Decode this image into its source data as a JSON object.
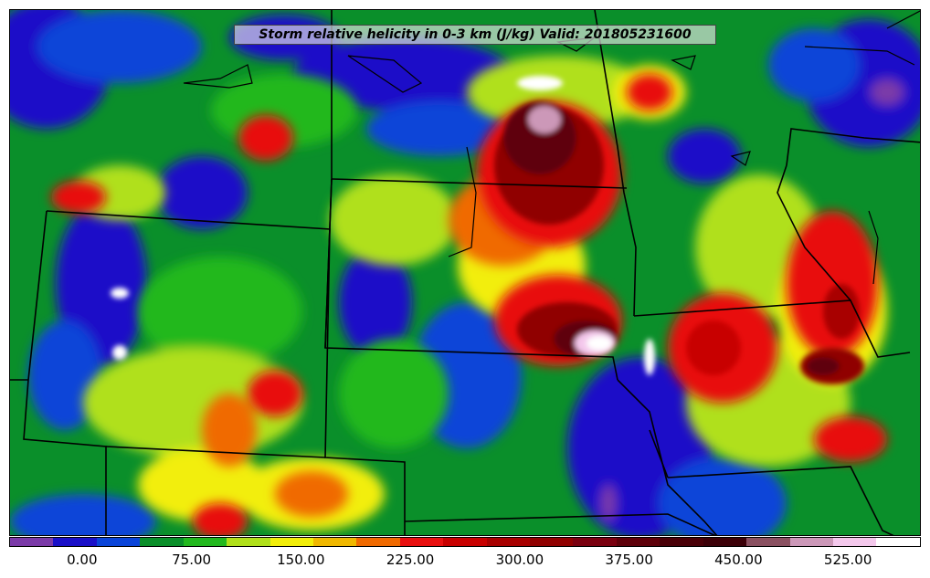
{
  "map": {
    "title": "Storm relative helicity in 0-3 km (J/kg) Valid: 201805231600",
    "field": "storm relative helicity 0-3 km",
    "units": "J/kg",
    "valid_time": "201805231600"
  },
  "colorbar": {
    "colors": [
      "#7b3aa8",
      "#1a10c8",
      "#0a44d8",
      "#0a8f2a",
      "#22b81e",
      "#b0e01a",
      "#f2ee0a",
      "#f0b800",
      "#f06a00",
      "#e81010",
      "#c80000",
      "#a80000",
      "#900000",
      "#7a0010",
      "#5e000a",
      "#4a0008",
      "#3c0008",
      "#8a5060",
      "#cc98b8",
      "#f4c8ec",
      "#ffffff"
    ],
    "tick_labels": [
      "0.00",
      "75.00",
      "150.00",
      "225.00",
      "300.00",
      "375.00",
      "450.00",
      "525.00"
    ],
    "min": -50,
    "max": 575,
    "step": 25
  },
  "icons": {
    "state_borders": "state-boundary-lines",
    "lakes": "lake-outlines"
  }
}
